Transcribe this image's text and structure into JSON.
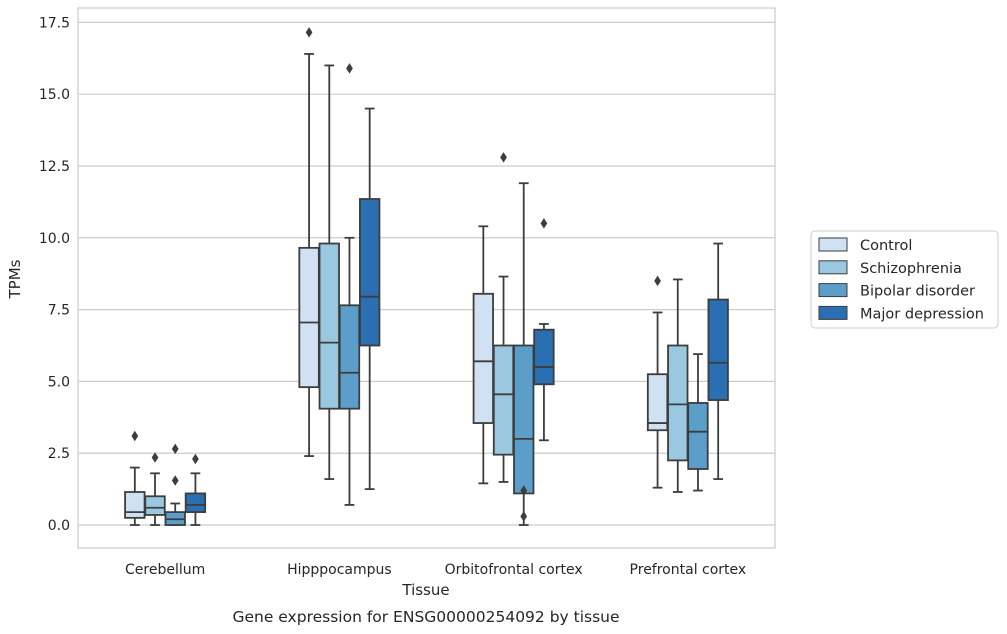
{
  "chart_data": {
    "type": "boxplot",
    "title": "Gene expression for ENSG00000254092 by tissue",
    "xlabel": "Tissue",
    "ylabel": "TPMs",
    "ylim": [
      -0.8,
      18.0
    ],
    "yticks": [
      "0.0",
      "2.5",
      "5.0",
      "7.5",
      "10.0",
      "12.5",
      "15.0",
      "17.5"
    ],
    "grid": "horizontal",
    "legend_position": "right",
    "categories": [
      "Cerebellum",
      "Hipppocampus",
      "Orbitofrontal cortex",
      "Prefrontal cortex"
    ],
    "series": [
      {
        "name": "Control",
        "color": "#cfe1f2",
        "boxes": [
          {
            "whislo": 0.0,
            "q1": 0.25,
            "med": 0.45,
            "q3": 1.15,
            "whishi": 2.0,
            "fliers": [
              3.1
            ]
          },
          {
            "whislo": 2.4,
            "q1": 4.8,
            "med": 7.05,
            "q3": 9.65,
            "whishi": 16.4,
            "fliers": [
              17.15
            ]
          },
          {
            "whislo": 1.45,
            "q1": 3.55,
            "med": 5.7,
            "q3": 8.05,
            "whishi": 10.4,
            "fliers": []
          },
          {
            "whislo": 1.3,
            "q1": 3.3,
            "med": 3.55,
            "q3": 5.25,
            "whishi": 7.4,
            "fliers": [
              8.5
            ]
          }
        ]
      },
      {
        "name": "Schizophrenia",
        "color": "#9ac8e0",
        "boxes": [
          {
            "whislo": 0.0,
            "q1": 0.35,
            "med": 0.6,
            "q3": 1.0,
            "whishi": 1.8,
            "fliers": [
              2.35
            ]
          },
          {
            "whislo": 1.6,
            "q1": 4.05,
            "med": 6.35,
            "q3": 9.8,
            "whishi": 16.0,
            "fliers": []
          },
          {
            "whislo": 1.5,
            "q1": 2.45,
            "med": 4.55,
            "q3": 6.25,
            "whishi": 8.65,
            "fliers": [
              12.8
            ]
          },
          {
            "whislo": 1.15,
            "q1": 2.25,
            "med": 4.2,
            "q3": 6.25,
            "whishi": 8.55,
            "fliers": []
          }
        ]
      },
      {
        "name": "Bipolar disorder",
        "color": "#5b9ec9",
        "boxes": [
          {
            "whislo": 0.0,
            "q1": 0.0,
            "med": 0.2,
            "q3": 0.45,
            "whishi": 0.75,
            "fliers": [
              1.55,
              2.65
            ]
          },
          {
            "whislo": 0.7,
            "q1": 4.05,
            "med": 5.3,
            "q3": 7.65,
            "whishi": 10.0,
            "fliers": [
              15.9
            ]
          },
          {
            "whislo": 0.0,
            "q1": 1.1,
            "med": 3.0,
            "q3": 6.25,
            "whishi": 11.9,
            "fliers": [
              0.3,
              1.2
            ]
          },
          {
            "whislo": 1.2,
            "q1": 1.95,
            "med": 3.25,
            "q3": 4.25,
            "whishi": 5.95,
            "fliers": []
          }
        ]
      },
      {
        "name": "Major depression",
        "color": "#2a6fb2",
        "boxes": [
          {
            "whislo": 0.0,
            "q1": 0.45,
            "med": 0.7,
            "q3": 1.1,
            "whishi": 1.8,
            "fliers": [
              2.3
            ]
          },
          {
            "whislo": 1.25,
            "q1": 6.25,
            "med": 7.95,
            "q3": 11.35,
            "whishi": 14.5,
            "fliers": []
          },
          {
            "whislo": 2.95,
            "q1": 4.9,
            "med": 5.5,
            "q3": 6.8,
            "whishi": 7.0,
            "fliers": [
              10.5
            ]
          },
          {
            "whislo": 1.6,
            "q1": 4.35,
            "med": 5.65,
            "q3": 7.85,
            "whishi": 9.8,
            "fliers": []
          }
        ]
      }
    ]
  }
}
